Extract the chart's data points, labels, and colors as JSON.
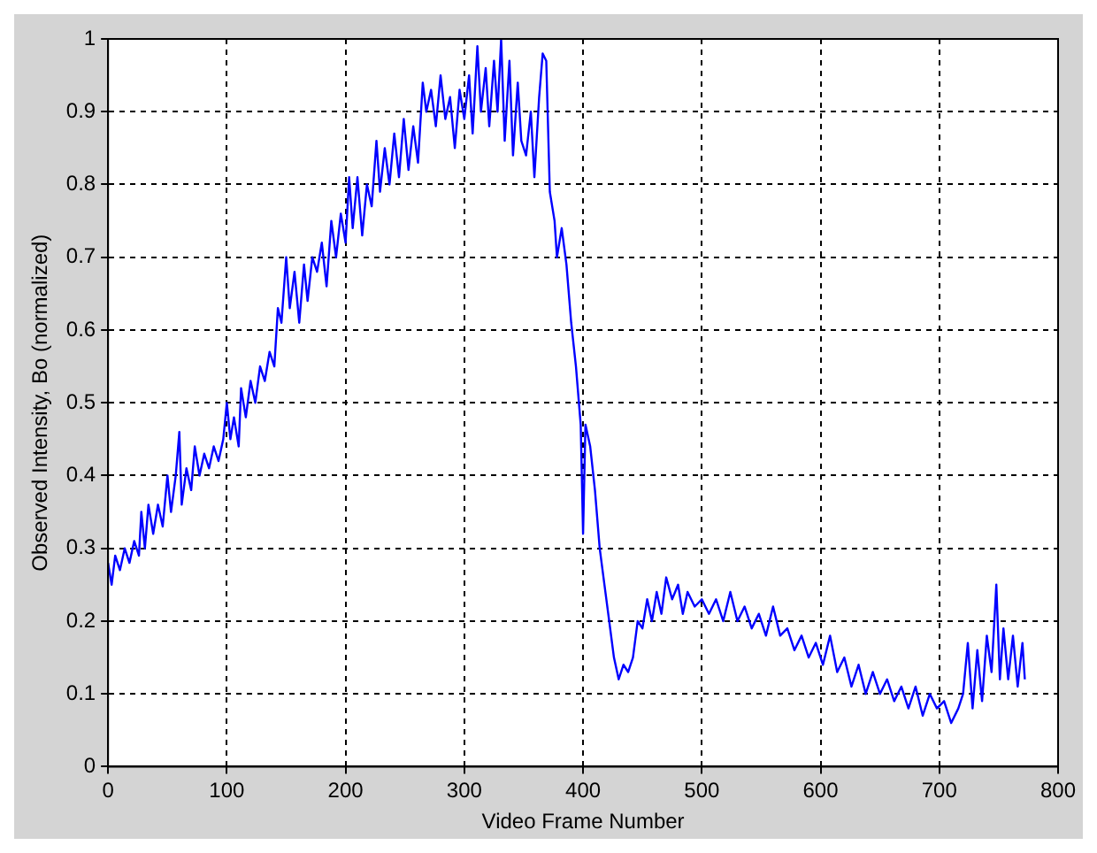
{
  "chart_data": {
    "type": "line",
    "xlabel": "Video Frame Number",
    "ylabel": "Observed Intensity, Bo (normalized)",
    "x": [
      0,
      3,
      6,
      10,
      14,
      18,
      22,
      26,
      28,
      31,
      34,
      38,
      42,
      46,
      50,
      53,
      57,
      60,
      62,
      66,
      70,
      73,
      77,
      81,
      85,
      89,
      93,
      97,
      100,
      103,
      106,
      110,
      112,
      116,
      120,
      124,
      128,
      132,
      136,
      140,
      143,
      146,
      150,
      153,
      157,
      161,
      165,
      168,
      172,
      176,
      180,
      184,
      188,
      192,
      196,
      200,
      203,
      206,
      210,
      214,
      218,
      222,
      226,
      229,
      233,
      237,
      241,
      245,
      249,
      253,
      257,
      261,
      265,
      268,
      272,
      276,
      280,
      284,
      288,
      292,
      296,
      300,
      304,
      307,
      311,
      314,
      318,
      321,
      325,
      328,
      331,
      334,
      338,
      341,
      345,
      348,
      352,
      356,
      359,
      363,
      366,
      369,
      372,
      376,
      378,
      382,
      386,
      390,
      394,
      398,
      400,
      402,
      406,
      410,
      414,
      418,
      422,
      426,
      430,
      434,
      438,
      442,
      446,
      450,
      454,
      458,
      462,
      466,
      470,
      475,
      480,
      484,
      488,
      494,
      500,
      506,
      512,
      518,
      524,
      530,
      536,
      542,
      548,
      554,
      560,
      566,
      572,
      578,
      584,
      590,
      596,
      602,
      608,
      614,
      620,
      626,
      632,
      638,
      644,
      650,
      656,
      662,
      668,
      674,
      680,
      686,
      692,
      698,
      704,
      710,
      716,
      720,
      724,
      728,
      732,
      736,
      740,
      744,
      748,
      751,
      754,
      758,
      762,
      766,
      770,
      772
    ],
    "series": [
      {
        "color": "#0000ff",
        "values": [
          0.28,
          0.25,
          0.29,
          0.27,
          0.3,
          0.28,
          0.31,
          0.29,
          0.35,
          0.3,
          0.36,
          0.32,
          0.36,
          0.33,
          0.4,
          0.35,
          0.4,
          0.46,
          0.36,
          0.41,
          0.38,
          0.44,
          0.4,
          0.43,
          0.41,
          0.44,
          0.42,
          0.45,
          0.5,
          0.45,
          0.48,
          0.44,
          0.52,
          0.48,
          0.53,
          0.5,
          0.55,
          0.53,
          0.57,
          0.55,
          0.63,
          0.61,
          0.7,
          0.63,
          0.68,
          0.61,
          0.69,
          0.64,
          0.7,
          0.68,
          0.72,
          0.66,
          0.75,
          0.7,
          0.76,
          0.72,
          0.81,
          0.74,
          0.81,
          0.73,
          0.8,
          0.77,
          0.86,
          0.79,
          0.85,
          0.8,
          0.87,
          0.81,
          0.89,
          0.82,
          0.88,
          0.83,
          0.94,
          0.9,
          0.93,
          0.88,
          0.95,
          0.89,
          0.92,
          0.85,
          0.93,
          0.89,
          0.95,
          0.87,
          0.99,
          0.9,
          0.96,
          0.88,
          0.97,
          0.9,
          1.0,
          0.86,
          0.97,
          0.84,
          0.94,
          0.86,
          0.84,
          0.9,
          0.81,
          0.92,
          0.98,
          0.97,
          0.79,
          0.75,
          0.7,
          0.74,
          0.69,
          0.61,
          0.55,
          0.47,
          0.32,
          0.47,
          0.44,
          0.38,
          0.3,
          0.25,
          0.2,
          0.15,
          0.12,
          0.14,
          0.13,
          0.15,
          0.2,
          0.19,
          0.23,
          0.2,
          0.24,
          0.21,
          0.26,
          0.23,
          0.25,
          0.21,
          0.24,
          0.22,
          0.23,
          0.21,
          0.23,
          0.2,
          0.24,
          0.2,
          0.22,
          0.19,
          0.21,
          0.18,
          0.22,
          0.18,
          0.19,
          0.16,
          0.18,
          0.15,
          0.17,
          0.14,
          0.18,
          0.13,
          0.15,
          0.11,
          0.14,
          0.1,
          0.13,
          0.1,
          0.12,
          0.09,
          0.11,
          0.08,
          0.11,
          0.07,
          0.1,
          0.08,
          0.09,
          0.06,
          0.08,
          0.1,
          0.17,
          0.08,
          0.16,
          0.09,
          0.18,
          0.13,
          0.25,
          0.12,
          0.19,
          0.12,
          0.18,
          0.11,
          0.17,
          0.12
        ]
      }
    ],
    "xlim": [
      0,
      800
    ],
    "xticks": [
      0,
      100,
      200,
      300,
      400,
      500,
      600,
      700,
      800
    ],
    "ylim": [
      0,
      1
    ],
    "yticks": [
      0,
      0.1,
      0.2,
      0.3,
      0.4,
      0.5,
      0.6,
      0.7,
      0.8,
      0.9,
      1
    ],
    "grid": true,
    "legend": false,
    "marker": "none",
    "line_style": "solid"
  }
}
